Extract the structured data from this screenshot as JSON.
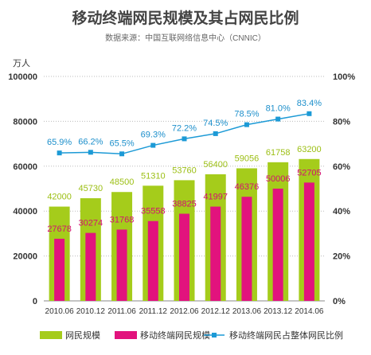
{
  "chart_data": {
    "type": "bar",
    "title": "移动终端网民规模及其占网民比例",
    "subtitle": "数据来源：中国互联网络信息中心（CNNIC）",
    "ylabel_left": "万人",
    "categories": [
      "2010.06",
      "2010.12",
      "2011.06",
      "2011.12",
      "2012.06",
      "2012.12",
      "2013.06",
      "2013.12",
      "2014.06"
    ],
    "left_axis": {
      "ylim": [
        0,
        100000
      ],
      "ticks": [
        "0",
        "20000",
        "40000",
        "60000",
        "80000",
        "100000"
      ]
    },
    "right_axis": {
      "ylim": [
        0,
        100
      ],
      "ticks": [
        "0%",
        "20%",
        "40%",
        "60%",
        "80%",
        "100%"
      ]
    },
    "series": [
      {
        "name": "网民规模",
        "type": "bar",
        "color": "#a5cc1b",
        "values": [
          42000,
          45730,
          48500,
          51310,
          53760,
          56400,
          59056,
          61758,
          63200
        ],
        "labels": [
          "42000",
          "45730",
          "48500",
          "51310",
          "53760",
          "56400",
          "59056",
          "61758",
          "63200"
        ]
      },
      {
        "name": "移动终端网民规模",
        "type": "bar",
        "color": "#e2137d",
        "values": [
          27678,
          30274,
          31768,
          35558,
          38825,
          41997,
          46376,
          50006,
          52705
        ],
        "labels": [
          "27678",
          "30274",
          "31768",
          "35558",
          "38825",
          "41997",
          "46376",
          "50006",
          "52705"
        ]
      },
      {
        "name": "移动终端网民占整体网民比例",
        "type": "line",
        "axis": "right",
        "color": "#1c9ad6",
        "values": [
          65.9,
          66.2,
          65.5,
          69.3,
          72.2,
          74.5,
          78.5,
          81.0,
          83.4
        ],
        "labels": [
          "65.9%",
          "66.2%",
          "65.5%",
          "69.3%",
          "72.2%",
          "74.5%",
          "78.5%",
          "81.0%",
          "83.4%"
        ]
      }
    ],
    "grid": "horizontal-dotted",
    "legend": "bottom"
  }
}
